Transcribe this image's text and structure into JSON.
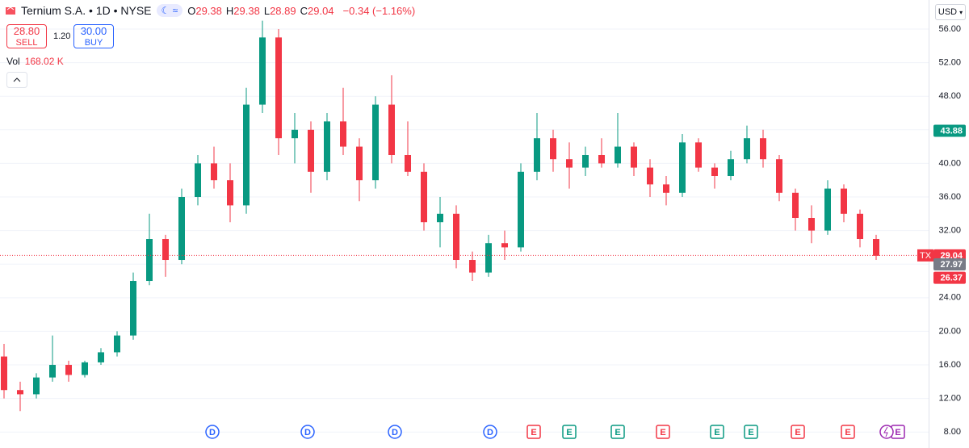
{
  "header": {
    "title": "Ternium S.A. • 1D • NYSE",
    "ohlc": [
      {
        "label": "O",
        "value": "29.38"
      },
      {
        "label": "H",
        "value": "29.38"
      },
      {
        "label": "L",
        "value": "28.89"
      },
      {
        "label": "C",
        "value": "29.04"
      }
    ],
    "change": "−0.34 (−1.16%)",
    "sell_price": "28.80",
    "sell_label": "SELL",
    "spread": "1.20",
    "buy_price": "30.00",
    "buy_label": "BUY",
    "volume_label": "Vol",
    "volume_value": "168.02 K",
    "currency": "USD"
  },
  "chart_data": {
    "type": "candlestick",
    "up_color": "#089981",
    "down_color": "#f23645",
    "ylim": [
      6.1,
      59.46
    ],
    "yticks": [
      {
        "value": 8,
        "label": "8.00"
      },
      {
        "value": 12,
        "label": "12.00"
      },
      {
        "value": 16,
        "label": "16.00"
      },
      {
        "value": 20,
        "label": "20.00"
      },
      {
        "value": 24,
        "label": "24.00"
      },
      {
        "value": 28,
        "label": "28.00"
      },
      {
        "value": 32,
        "label": "32.00"
      },
      {
        "value": 36,
        "label": "36.00"
      },
      {
        "value": 40,
        "label": "40.00"
      },
      {
        "value": 44,
        "label": "44.00"
      },
      {
        "value": 48,
        "label": "48.00"
      },
      {
        "value": 52,
        "label": "52.00"
      },
      {
        "value": 56,
        "label": "56.00"
      }
    ],
    "grid": true,
    "open": [
      17,
      13,
      12.5,
      14.5,
      16,
      14.8,
      16.3,
      17.5,
      19.5,
      26,
      31,
      28.5,
      36,
      40,
      38,
      35,
      47,
      55,
      43,
      44,
      39,
      45,
      42,
      38,
      47,
      41,
      39,
      33,
      34,
      28.5,
      27,
      30.5,
      30,
      39,
      43,
      40.5,
      39.5,
      41,
      40,
      42,
      39.5,
      37.5,
      36.5,
      42.5,
      39.5,
      38.5,
      40.5,
      43,
      40.5,
      36.5,
      33.5,
      32,
      37,
      34,
      31
    ],
    "high": [
      18.5,
      14,
      15,
      19.5,
      16.5,
      16.5,
      18,
      20,
      27,
      34,
      31.5,
      37,
      41,
      42,
      40,
      49,
      57,
      56,
      46,
      45,
      46,
      49,
      43,
      48,
      50.5,
      45,
      40,
      36,
      35,
      29.5,
      31.5,
      32,
      40,
      46,
      44,
      42.5,
      42,
      43,
      46,
      42.5,
      40.5,
      38.5,
      43.5,
      43,
      40,
      41.5,
      44.5,
      44,
      41,
      37,
      35,
      38,
      37.5,
      34.5,
      31.5
    ],
    "low": [
      12,
      10.5,
      12,
      14,
      14,
      14.5,
      16,
      17,
      19,
      25.5,
      26.5,
      28,
      35,
      37,
      33,
      34,
      46,
      41,
      40,
      36.5,
      38,
      41,
      35.5,
      37,
      40,
      38.5,
      32,
      30,
      27.5,
      26,
      26.5,
      28.5,
      29.5,
      38,
      39,
      37,
      38.5,
      39.5,
      39.5,
      38.5,
      36,
      35,
      36,
      39,
      37,
      38,
      40,
      39.5,
      35.5,
      32,
      30.5,
      31.5,
      33,
      30,
      28.5
    ],
    "close": [
      13,
      12.5,
      14.5,
      16,
      14.8,
      16.3,
      17.5,
      19.5,
      26,
      31,
      28.5,
      36,
      40,
      38,
      35,
      47,
      55,
      43,
      44,
      39,
      45,
      42,
      38,
      47,
      41,
      39,
      33,
      34,
      28.5,
      27,
      30.5,
      30,
      39,
      43,
      40.5,
      39.5,
      41,
      40,
      42,
      39.5,
      37.5,
      36.5,
      42.5,
      39.5,
      38.5,
      40.5,
      43,
      40.5,
      36.5,
      33.5,
      32,
      37,
      34,
      31,
      29
    ],
    "price_labels": [
      {
        "symbol": "TX",
        "value": 29.04,
        "color": "#f23645"
      },
      {
        "value": 43.88,
        "color": "#089981"
      },
      {
        "value": 27.97,
        "color": "#787b86"
      },
      {
        "value": 26.37,
        "color": "#f23645"
      }
    ],
    "events": [
      "D",
      "D",
      "D",
      "D",
      "E",
      "E",
      "E",
      "E",
      "E",
      "E",
      "E",
      "E",
      "E"
    ]
  }
}
